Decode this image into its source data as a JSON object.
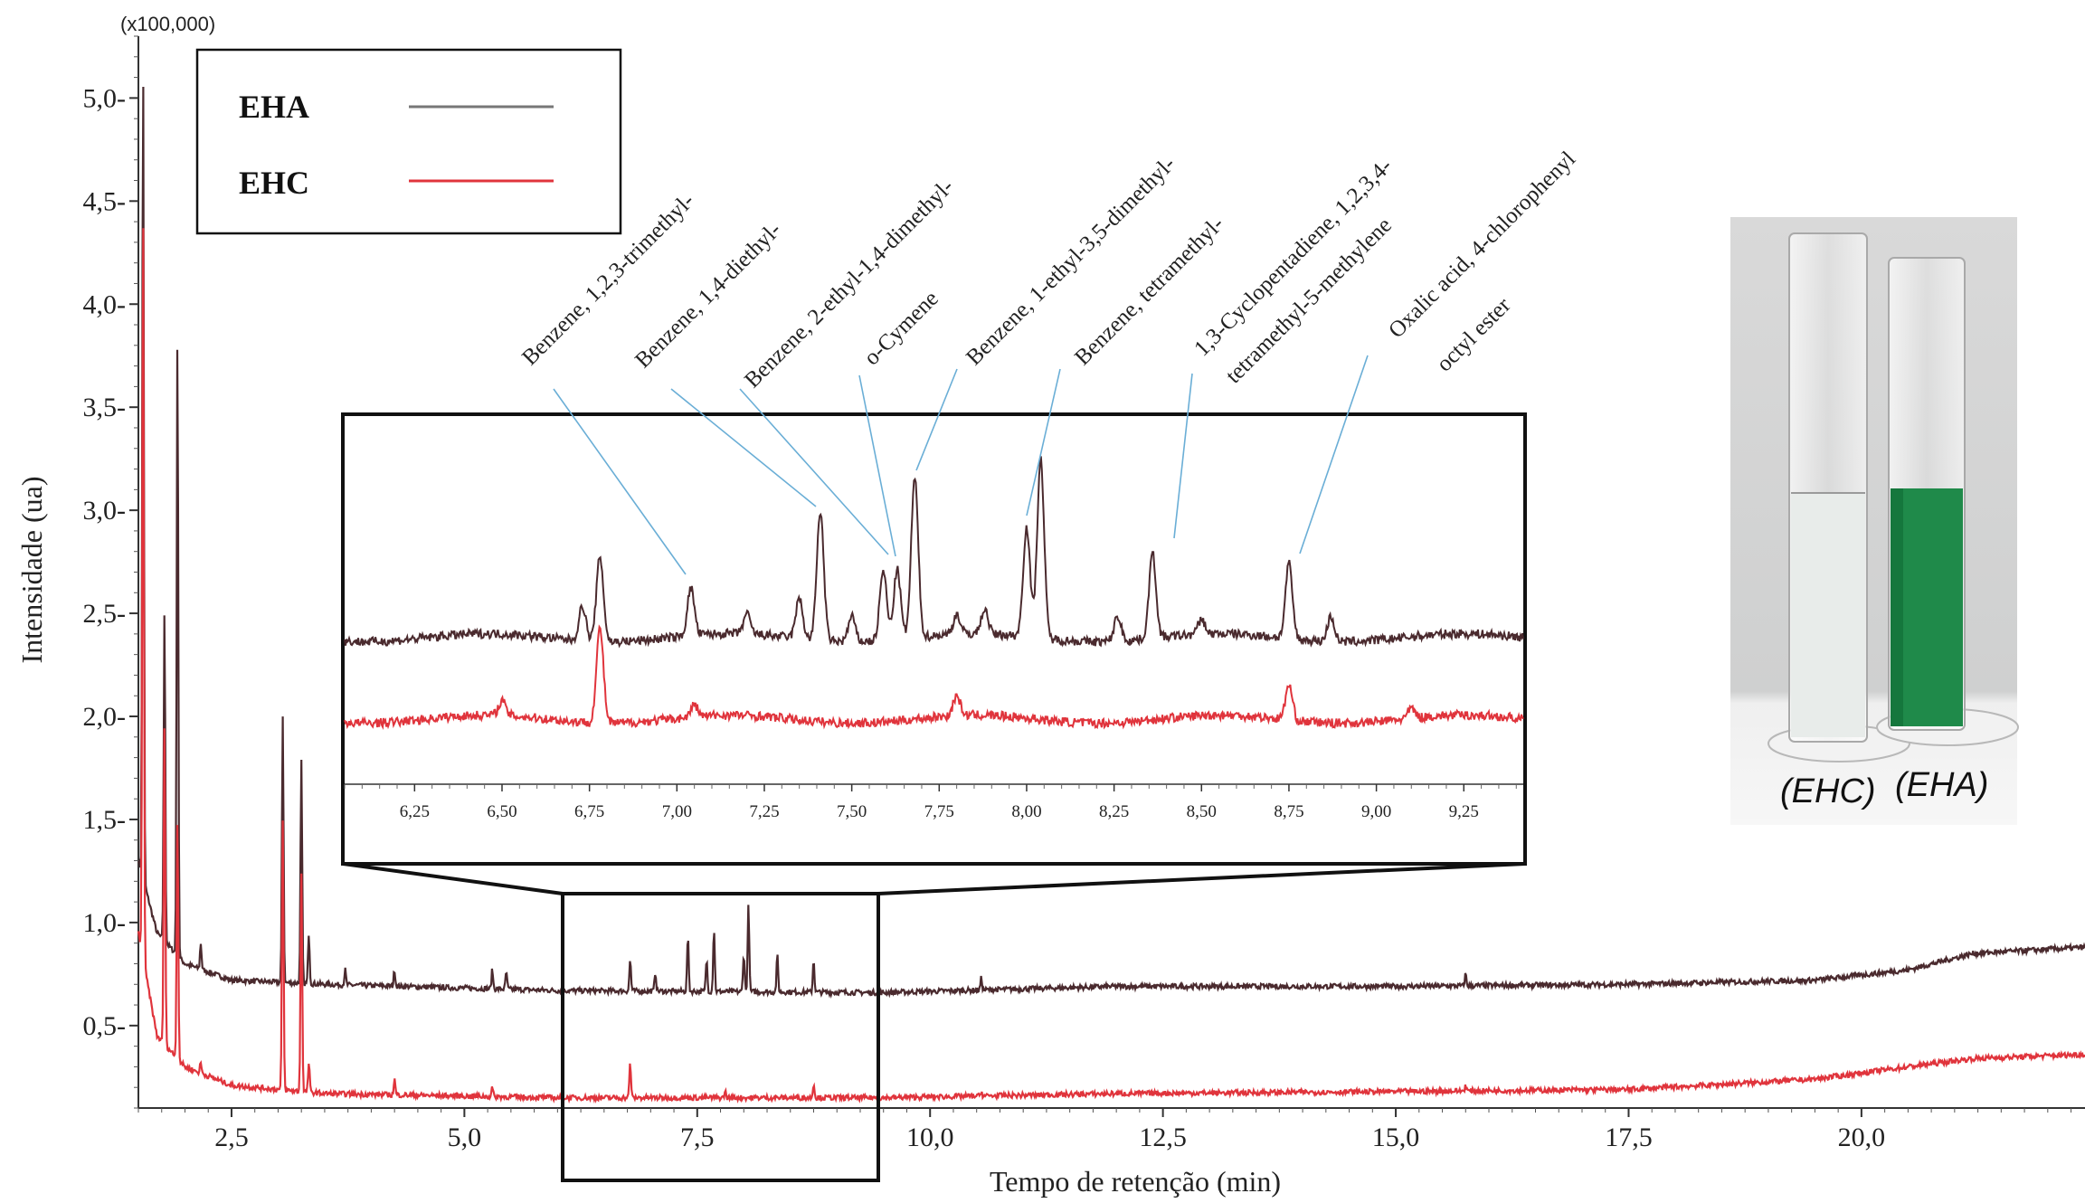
{
  "chart_data": {
    "type": "line",
    "title": "",
    "xlabel": "Tempo de retenção (min)",
    "ylabel": "Intensidade (ua)",
    "y_multiplier": "(x100,000)",
    "xlim": [
      1.5,
      22.4
    ],
    "ylim": [
      0.1,
      5.3
    ],
    "x_ticks": [
      "2,5",
      "5,0",
      "7,5",
      "10,0",
      "12,5",
      "15,0",
      "17,5",
      "20,0"
    ],
    "y_ticks": [
      "0,5",
      "1,0",
      "1,5",
      "2,0",
      "2,5",
      "3,0",
      "3,5",
      "4,0",
      "4,5",
      "5,0"
    ],
    "grid": false,
    "legend_position": "top-left",
    "series": [
      {
        "name": "EHA",
        "color": "#4a2a2e",
        "baseline": [
          [
            1.5,
            1.3
          ],
          [
            1.7,
            0.95
          ],
          [
            2.0,
            0.8
          ],
          [
            2.5,
            0.72
          ],
          [
            3.5,
            0.7
          ],
          [
            6.0,
            0.67
          ],
          [
            9.5,
            0.66
          ],
          [
            12.0,
            0.69
          ],
          [
            15.0,
            0.69
          ],
          [
            17.5,
            0.7
          ],
          [
            19.5,
            0.72
          ],
          [
            20.5,
            0.77
          ],
          [
            21.2,
            0.85
          ],
          [
            22.4,
            0.88
          ]
        ],
        "peaks": [
          [
            1.55,
            5.2
          ],
          [
            1.78,
            2.5
          ],
          [
            1.92,
            3.85
          ],
          [
            2.17,
            0.9
          ],
          [
            3.05,
            2.0
          ],
          [
            3.25,
            1.78
          ],
          [
            3.33,
            0.95
          ],
          [
            3.72,
            0.77
          ],
          [
            4.25,
            0.77
          ],
          [
            5.3,
            0.77
          ],
          [
            5.45,
            0.76
          ],
          [
            6.78,
            0.82
          ],
          [
            7.05,
            0.76
          ],
          [
            7.4,
            0.93
          ],
          [
            7.6,
            0.82
          ],
          [
            7.68,
            0.97
          ],
          [
            8.0,
            0.85
          ],
          [
            8.05,
            1.08
          ],
          [
            8.36,
            0.84
          ],
          [
            8.75,
            0.82
          ],
          [
            10.55,
            0.73
          ],
          [
            15.75,
            0.75
          ]
        ]
      },
      {
        "name": "EHC",
        "color": "#e0343c",
        "baseline": [
          [
            1.5,
            0.95
          ],
          [
            1.7,
            0.45
          ],
          [
            2.0,
            0.3
          ],
          [
            2.5,
            0.21
          ],
          [
            3.5,
            0.17
          ],
          [
            6.0,
            0.15
          ],
          [
            9.5,
            0.15
          ],
          [
            12.0,
            0.17
          ],
          [
            15.0,
            0.18
          ],
          [
            17.5,
            0.19
          ],
          [
            19.5,
            0.24
          ],
          [
            20.5,
            0.3
          ],
          [
            21.2,
            0.34
          ],
          [
            22.4,
            0.36
          ]
        ],
        "peaks": [
          [
            1.55,
            4.5
          ],
          [
            1.78,
            1.95
          ],
          [
            1.92,
            1.5
          ],
          [
            2.17,
            0.32
          ],
          [
            3.05,
            1.5
          ],
          [
            3.25,
            1.25
          ],
          [
            3.33,
            0.32
          ],
          [
            4.25,
            0.24
          ],
          [
            5.3,
            0.2
          ],
          [
            6.78,
            0.32
          ],
          [
            7.8,
            0.18
          ],
          [
            8.75,
            0.22
          ],
          [
            10.55,
            0.18
          ],
          [
            15.75,
            0.21
          ]
        ]
      }
    ],
    "inset": {
      "xlim": [
        6.05,
        9.42
      ],
      "x_ticks": [
        "6,25",
        "6,50",
        "6,75",
        "7,00",
        "7,25",
        "7,50",
        "7,75",
        "8,00",
        "8,25",
        "8,50",
        "8,75",
        "9,00",
        "9,25"
      ],
      "eha_peaks": [
        [
          6.73,
          0.35
        ],
        [
          6.78,
          0.85
        ],
        [
          7.04,
          0.48
        ],
        [
          7.2,
          0.2
        ],
        [
          7.35,
          0.4
        ],
        [
          7.41,
          1.3
        ],
        [
          7.5,
          0.25
        ],
        [
          7.59,
          0.7
        ],
        [
          7.63,
          0.7
        ],
        [
          7.68,
          1.6
        ],
        [
          7.8,
          0.2
        ],
        [
          7.88,
          0.25
        ],
        [
          8.0,
          1.1
        ],
        [
          8.04,
          1.8
        ],
        [
          8.26,
          0.25
        ],
        [
          8.36,
          0.85
        ],
        [
          8.5,
          0.15
        ],
        [
          8.75,
          0.75
        ],
        [
          8.87,
          0.25
        ]
      ],
      "ehc_peaks": [
        [
          6.78,
          0.95
        ],
        [
          6.5,
          0.15
        ],
        [
          7.05,
          0.12
        ],
        [
          7.8,
          0.2
        ],
        [
          8.75,
          0.35
        ],
        [
          9.1,
          0.1
        ]
      ]
    },
    "annotations": [
      {
        "text": "Benzene, 1,2,3-trimethyl-",
        "x": 7.04
      },
      {
        "text": "Benzene, 1,4-diethyl-",
        "x": 7.41
      },
      {
        "text": "Benzene, 2-ethyl-1,4-dimethyl-",
        "x": 7.59
      },
      {
        "text": "o-Cymene",
        "x": 7.63
      },
      {
        "text": "Benzene, 1-ethyl-3,5-dimethyl-",
        "x": 7.68
      },
      {
        "text": "Benzene, tetramethyl-",
        "x": 8.02
      },
      {
        "text": "1,3-Cyclopentadiene, 1,2,3,4-",
        "x": 8.36
      },
      {
        "text": "tetramethyl-5-methylene",
        "x": 8.36
      },
      {
        "text": "Oxalic acid, 4-chlorophenyl",
        "x": 8.75
      },
      {
        "text": "octyl ester",
        "x": 8.75
      }
    ]
  },
  "photo": {
    "labels": [
      "(EHC)",
      "(EHA)"
    ],
    "liquid_colors": [
      "#e8ecea",
      "#1f8a4a"
    ]
  }
}
